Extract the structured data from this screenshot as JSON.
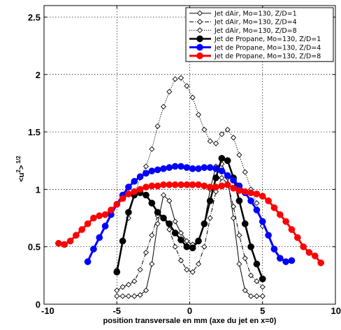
{
  "chart_data": {
    "type": "line",
    "title": "",
    "xlabel": "position transversale en mm (axe du jet en x=0)",
    "ylabel": "<u²>^1/2",
    "ylabel_parts": {
      "base": "<u",
      "sup1": "2",
      "mid": ">",
      "sup2": " 1/2"
    },
    "xlim": [
      -10,
      10
    ],
    "ylim": [
      0,
      2.6
    ],
    "xticks": [
      -10,
      -5,
      0,
      5,
      10
    ],
    "xtick_labels": [
      "-10",
      "-5",
      "0",
      "5",
      "10"
    ],
    "yticks": [
      0,
      0.5,
      1,
      1.5,
      2,
      2.5
    ],
    "ytick_labels": [
      "0",
      "0.5",
      "1",
      "1.5",
      "2",
      "2.5"
    ],
    "grid": true,
    "legend_position": "top-right",
    "series": [
      {
        "name": "Jet dAir, Mo=130, Z/D=1",
        "color": "#000000",
        "linestyle": "solid",
        "marker": "diamond-open",
        "linewidth": 1,
        "x": [
          -5,
          -4.6,
          -4.2,
          -3.8,
          -3.4,
          -3,
          -2.6,
          -2.2,
          -1.8,
          -1.4,
          -1,
          -0.6,
          -0.2,
          0.2,
          0.6,
          1,
          1.4,
          1.8,
          2.2,
          2.6,
          3,
          3.4,
          3.8,
          4.2,
          4.6,
          5
        ],
        "y": [
          0.07,
          0.07,
          0.07,
          0.07,
          0.08,
          0.12,
          0.35,
          0.7,
          0.95,
          0.9,
          0.72,
          0.62,
          0.55,
          0.52,
          0.55,
          0.7,
          1.0,
          1.2,
          1.22,
          1.1,
          0.75,
          0.35,
          0.12,
          0.07,
          0.07,
          0.07
        ]
      },
      {
        "name": "Jet dAir, Mo=130, Z/D=4",
        "color": "#000000",
        "linestyle": "dashdot",
        "marker": "diamond-open",
        "linewidth": 1,
        "x": [
          -5,
          -4.6,
          -4.2,
          -3.8,
          -3.4,
          -3,
          -2.6,
          -2.2,
          -1.8,
          -1.4,
          -1,
          -0.6,
          -0.2,
          0.2,
          0.6,
          1,
          1.4,
          1.8,
          2.2,
          2.6,
          3,
          3.4,
          3.8,
          4.2,
          4.6,
          5
        ],
        "y": [
          0.12,
          0.15,
          0.17,
          0.2,
          0.3,
          0.45,
          0.6,
          0.77,
          0.75,
          0.65,
          0.5,
          0.38,
          0.3,
          0.28,
          0.35,
          0.5,
          0.75,
          0.98,
          1.1,
          1.05,
          0.85,
          0.6,
          0.4,
          0.25,
          0.2,
          0.15
        ]
      },
      {
        "name": "Jet dAir, Mo=130, Z/D=8",
        "color": "#000000",
        "linestyle": "dotted",
        "marker": "diamond-open",
        "linewidth": 1,
        "x": [
          -5,
          -4.6,
          -4.2,
          -3.8,
          -3.4,
          -3,
          -2.6,
          -2.2,
          -1.8,
          -1.4,
          -1,
          -0.6,
          -0.2,
          0.2,
          0.6,
          1,
          1.4,
          1.8,
          2.2,
          2.6,
          3,
          3.4,
          3.8,
          4.2,
          4.6,
          5
        ],
        "y": [
          0.3,
          0.55,
          0.75,
          0.95,
          1.1,
          1.2,
          1.35,
          1.55,
          1.72,
          1.85,
          1.96,
          1.97,
          1.9,
          1.8,
          1.65,
          1.52,
          1.42,
          1.4,
          1.48,
          1.52,
          1.45,
          1.3,
          1.15,
          1.0,
          0.88,
          0.68
        ]
      },
      {
        "name": "Jet de Propane, Mo=130, Z/D=1",
        "color": "#000000",
        "linestyle": "solid",
        "marker": "circle-filled",
        "linewidth": 2.5,
        "x": [
          -5,
          -4.6,
          -4.2,
          -3.8,
          -3.4,
          -3,
          -2.6,
          -2.2,
          -1.8,
          -1.4,
          -1,
          -0.6,
          -0.2,
          0.2,
          0.6,
          1,
          1.4,
          1.8,
          2.2,
          2.6,
          3,
          3.4,
          3.8,
          4.2,
          4.6,
          5
        ],
        "y": [
          0.28,
          0.55,
          0.8,
          0.95,
          0.97,
          0.95,
          0.88,
          0.8,
          0.75,
          0.7,
          0.62,
          0.56,
          0.5,
          0.49,
          0.55,
          0.7,
          0.9,
          1.1,
          1.27,
          1.25,
          1.1,
          0.9,
          0.7,
          0.5,
          0.35,
          0.22
        ]
      },
      {
        "name": "Jet de Propane, Mo=130, Z/D=4",
        "color": "#0000ff",
        "linestyle": "solid",
        "marker": "circle-filled",
        "linewidth": 3,
        "x": [
          -7,
          -6.6,
          -6.2,
          -5.8,
          -5.4,
          -5,
          -4.6,
          -4.2,
          -3.8,
          -3.4,
          -3,
          -2.6,
          -2.2,
          -1.8,
          -1.4,
          -1,
          -0.6,
          -0.2,
          0.2,
          0.6,
          1,
          1.4,
          1.8,
          2.2,
          2.6,
          3,
          3.4,
          3.8,
          4.2,
          4.6,
          5,
          5.4,
          5.8,
          6.2,
          6.6,
          7
        ],
        "y": [
          0.37,
          0.48,
          0.58,
          0.68,
          0.78,
          0.87,
          0.95,
          1.02,
          1.07,
          1.11,
          1.14,
          1.16,
          1.17,
          1.18,
          1.19,
          1.2,
          1.2,
          1.19,
          1.18,
          1.18,
          1.19,
          1.19,
          1.18,
          1.16,
          1.12,
          1.08,
          1.03,
          0.97,
          0.9,
          0.82,
          0.72,
          0.6,
          0.48,
          0.4,
          0.37,
          0.38
        ]
      },
      {
        "name": "Jet de Propane, Mo=130, Z/D=8",
        "color": "#ff0000",
        "linestyle": "solid",
        "marker": "circle-filled",
        "linewidth": 3,
        "x": [
          -9,
          -8.6,
          -8.2,
          -7.8,
          -7.4,
          -7,
          -6.6,
          -6.2,
          -5.8,
          -5.4,
          -5,
          -4.6,
          -4.2,
          -3.8,
          -3.4,
          -3,
          -2.6,
          -2.2,
          -1.8,
          -1.4,
          -1,
          -0.6,
          -0.2,
          0.2,
          0.6,
          1,
          1.4,
          1.8,
          2.2,
          2.6,
          3,
          3.4,
          3.8,
          4.2,
          4.6,
          5,
          5.4,
          5.8,
          6.2,
          6.6,
          7,
          7.4,
          7.8,
          8.2,
          8.6,
          9
        ],
        "y": [
          0.53,
          0.52,
          0.55,
          0.6,
          0.65,
          0.7,
          0.75,
          0.77,
          0.78,
          0.82,
          0.87,
          0.92,
          0.96,
          0.98,
          1.0,
          1.02,
          1.03,
          1.03,
          1.04,
          1.04,
          1.04,
          1.04,
          1.04,
          1.04,
          1.04,
          1.03,
          1.02,
          1.02,
          1.03,
          1.04,
          1.01,
          0.99,
          0.98,
          0.97,
          0.96,
          0.94,
          0.9,
          0.84,
          0.78,
          0.72,
          0.65,
          0.58,
          0.5,
          0.45,
          0.42,
          0.36
        ]
      }
    ]
  }
}
